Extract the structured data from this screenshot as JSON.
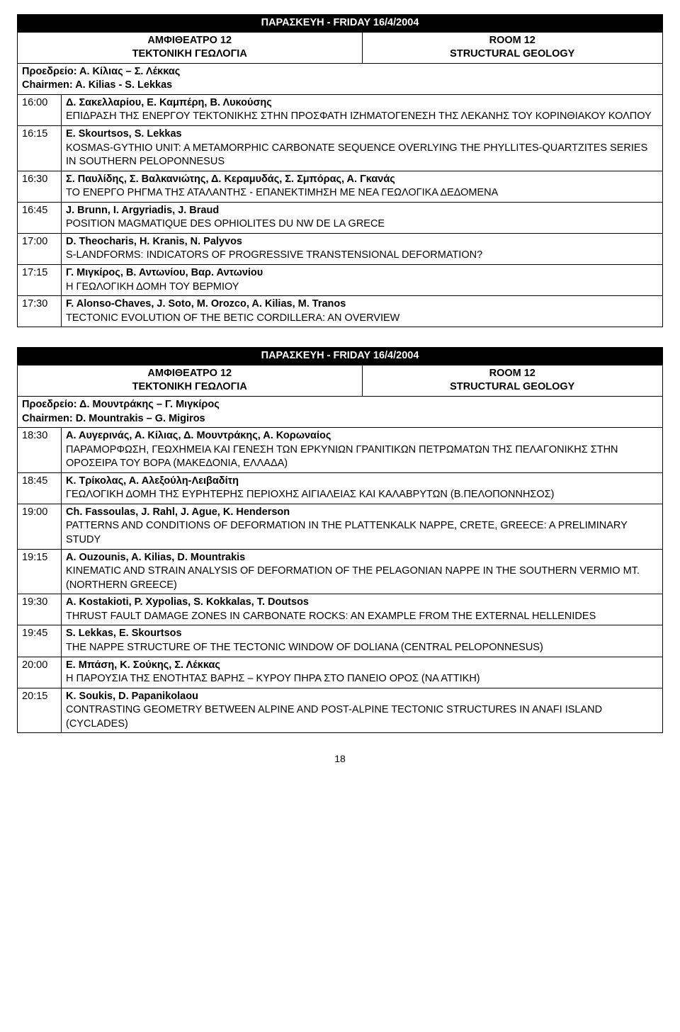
{
  "page_number": "18",
  "sessions": [
    {
      "banner": "ΠΑΡΑΣΚΕΥΗ - FRIDAY 16/4/2004",
      "left_header_gr": "ΑΜΦΙΘΕΑΤΡΟ 12",
      "left_header_sub_gr": "ΤΕΚΤΟΝΙΚΗ ΓΕΩΛΟΓΙΑ",
      "right_header_en": "ROOM 12",
      "right_header_sub_en": "STRUCTURAL GEOLOGY",
      "chair_gr": "Προεδρείο: Α. Κίλιας – Σ. Λέκκας",
      "chair_en": "Chairmen: A. Kilias - S. Lekkas",
      "talks": [
        {
          "time": "16:00",
          "authors": "Δ. Σακελλαρίου, Ε. Καμπέρη, Β. Λυκούσης",
          "title": "ΕΠΙΔΡΑΣΗ ΤΗΣ ΕΝΕΡΓΟΥ ΤΕΚΤΟΝΙΚΗΣ ΣΤΗΝ ΠΡΟΣΦΑΤΗ ΙΖΗΜΑΤΟΓΕΝΕΣΗ ΤΗΣ ΛΕΚΑΝΗΣ ΤΟΥ ΚΟΡΙΝΘΙΑΚΟΥ ΚΟΛΠΟΥ"
        },
        {
          "time": "16:15",
          "authors": "E. Skourtsos, S. Lekkas",
          "title": "KOSMAS-GYTHIO UNIT: A METAMORPHIC CARBONATE SEQUENCE OVERLYING THE PHYLLITES-QUARTZITES SERIES IN SOUTHERN PELOPONNESUS"
        },
        {
          "time": "16:30",
          "authors": "Σ. Παυλίδης, Σ. Βαλκανιώτης, Δ. Κεραμυδάς, Σ. Σμπόρας, Α. Γκανάς",
          "title": "ΤΟ ΕΝΕΡΓΟ ΡΗΓΜΑ ΤΗΣ ΑΤΑΛΑΝΤΗΣ - ΕΠΑΝΕΚΤΙΜΗΣΗ ΜΕ ΝΕΑ ΓΕΩΛΟΓΙΚΑ ΔΕΔΟΜΕΝΑ"
        },
        {
          "time": "16:45",
          "authors": "J. Brunn, I. Argyriadis, J. Braud",
          "title": "POSITION MAGMATIQUE DES OPHIOLITES DU NW DE LA GRECE"
        },
        {
          "time": "17:00",
          "authors": "D. Theocharis, H. Kranis, N. Palyvos",
          "title": "S-LANDFORMS: INDICATORS OF PROGRESSIVE TRANSTENSIONAL DEFORMATION?"
        },
        {
          "time": "17:15",
          "authors": "Γ. Μιγκίρος, Β. Αντωνίου, Βαρ. Αντωνίου",
          "title": "Η ΓΕΩΛΟΓΙΚΗ ΔΟΜΗ ΤΟΥ ΒΕΡΜΙΟΥ"
        },
        {
          "time": "17:30",
          "authors": "F. Alonso-Chaves, J. Soto, M. Orozco, A. Kilias, M. Tranos",
          "title": "TECTONIC EVOLUTION OF THE BETIC CORDILLERA: AN OVERVIEW"
        }
      ]
    },
    {
      "banner": "ΠΑΡΑΣΚΕΥΗ - FRIDAY 16/4/2004",
      "left_header_gr": "ΑΜΦΙΘΕΑΤΡΟ 12",
      "left_header_sub_gr": "ΤΕΚΤΟΝΙΚΗ ΓΕΩΛΟΓΙΑ",
      "right_header_en": "ROOM 12",
      "right_header_sub_en": "STRUCTURAL GEOLOGY",
      "chair_gr": "Προεδρείο: Δ. Μουντράκης – Γ. Μιγκίρος",
      "chair_en": "Chairmen: D. Mountrakis – G. Migiros",
      "talks": [
        {
          "time": "18:30",
          "authors": "Α. Αυγερινάς, Α. Κίλιας, Δ. Μουντράκης, Α. Κορωναίος",
          "title": "ΠΑΡΑΜΟΡΦΩΣΗ, ΓΕΩΧΗΜΕΙΑ ΚΑΙ ΓΕΝΕΣΗ ΤΩΝ ΕΡΚΥΝΙΩΝ ΓΡΑΝΙΤΙΚΩΝ ΠΕΤΡΩΜΑΤΩΝ ΤΗΣ ΠΕΛΑΓΟΝΙΚΗΣ ΣΤΗΝ ΟΡΟΣΕΙΡΑ ΤΟΥ ΒΟΡΑ (ΜΑΚΕΔΟΝΙΑ, ΕΛΛΑΔΑ)"
        },
        {
          "time": "18:45",
          "authors": "Κ. Τρίκολας, Α. Αλεξούλη-Λειβαδίτη",
          "title": "ΓΕΩΛΟΓΙΚΗ ΔΟΜΗ ΤΗΣ ΕΥΡΗΤΕΡΗΣ ΠΕΡΙΟΧΗΣ ΑΙΓΙΑΛΕΙΑΣ ΚΑΙ ΚΑΛΑΒΡΥΤΩΝ (Β.ΠΕΛΟΠΟΝΝΗΣΟΣ)"
        },
        {
          "time": "19:00",
          "authors": "Ch. Fassoulas, J. Rahl, J. Ague, K. Henderson",
          "title": "PATTERNS AND CONDITIONS OF DEFORMATION IN THE PLATTENKALK NAPPE, CRETE, GREECE: A PRELIMINARY STUDY"
        },
        {
          "time": "19:15",
          "authors": "A. Ouzounis, A. Kilias, D. Mountrakis",
          "title": "KINEMATIC AND STRAIN ANALYSIS OF DEFORMATION OF THE PELAGONIAN NAPPE IN THE SOUTHERN VERMIO MT. (NORTHERN GREECE)"
        },
        {
          "time": "19:30",
          "authors": "A. Kostakioti, P. Xypolias, S. Kokkalas, T. Doutsos",
          "title": "THRUST FAULT DAMAGE ZONES IN CARBONATE ROCKS: AN EXAMPLE FROM THE EXTERNAL HELLENIDES"
        },
        {
          "time": "19:45",
          "authors": "S. Lekkas, E. Skourtsos",
          "title": "THE NAPPE STRUCTURE OF THE TECTONIC WINDOW OF DOLIANA (CENTRAL PELOPONNESUS)"
        },
        {
          "time": "20:00",
          "authors": "Ε. Μπάση, Κ. Σούκης, Σ. Λέκκας",
          "title": "Η ΠΑΡΟΥΣΙΑ ΤΗΣ ΕΝΟΤΗΤΑΣ ΒΑΡΗΣ – ΚΥΡΟΥ ΠΗΡΑ ΣΤΟ ΠΑΝΕΙΟ ΟΡΟΣ (ΝΑ ΑΤΤΙΚΗ)"
        },
        {
          "time": "20:15",
          "authors": "K. Soukis, D. Papanikolaou",
          "title": "CONTRASTING GEOMETRY BETWEEN ALPINE AND POST-ALPINE TECTONIC STRUCTURES IN ANAFI ISLAND (CYCLADES)"
        }
      ]
    }
  ]
}
